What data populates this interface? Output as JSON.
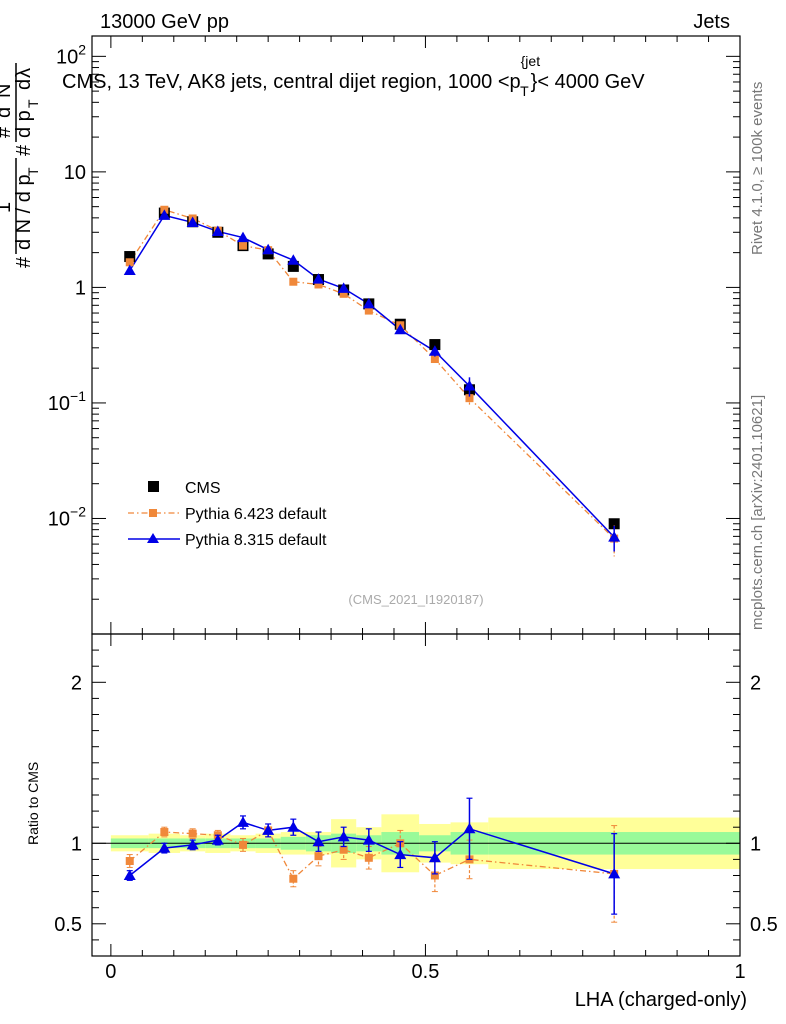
{
  "header": {
    "left": "13000 GeV pp",
    "right": "Jets",
    "title_part1": "CMS, 13 TeV, AK8 jets, central dijet region, 1000 <p",
    "title_sup": "{jet",
    "title_sub": "T",
    "title_part2": "}< 4000 GeV"
  },
  "side_labels": {
    "rivet": "Rivet 4.1.0, ≥ 100k events",
    "mcplots": "mcplots.cern.ch [arXiv:2401.10621]"
  },
  "watermark": "(CMS_2021_I1920187)",
  "chart_data": {
    "type": "line",
    "xlabel": "LHA (charged-only)",
    "ylabel_main": "1/(dN/dpT) · d²N/(dpT dλ)",
    "ylabel_ratio": "Ratio to CMS",
    "xlim": [
      -0.03,
      1.0
    ],
    "main_ylim": [
      0.001,
      150
    ],
    "main_yscale": "log",
    "ratio_ylim": [
      0.3,
      2.3
    ],
    "x_ticks": [
      {
        "v": 0,
        "label": "0"
      },
      {
        "v": 0.5,
        "label": "0.5"
      },
      {
        "v": 1,
        "label": "1"
      }
    ],
    "main_y_ticks": [
      {
        "v": 0.01,
        "base": "10",
        "exp": "−2"
      },
      {
        "v": 0.1,
        "base": "10",
        "exp": "−1"
      },
      {
        "v": 1,
        "base": "1",
        "exp": ""
      },
      {
        "v": 10,
        "base": "10",
        "exp": ""
      },
      {
        "v": 100,
        "base": "10",
        "exp": "2"
      }
    ],
    "ratio_y_ticks": [
      {
        "v": 0.5,
        "label": "0.5"
      },
      {
        "v": 1,
        "label": "1"
      },
      {
        "v": 2,
        "label": "2"
      }
    ],
    "x": [
      0.03,
      0.085,
      0.13,
      0.17,
      0.21,
      0.25,
      0.29,
      0.33,
      0.37,
      0.41,
      0.46,
      0.515,
      0.57,
      0.8
    ],
    "bin_edges": [
      0,
      0.06,
      0.11,
      0.15,
      0.19,
      0.23,
      0.27,
      0.31,
      0.35,
      0.39,
      0.43,
      0.49,
      0.54,
      0.6,
      1.0
    ],
    "series": [
      {
        "name": "CMS",
        "values": [
          1.85,
          4.4,
          3.7,
          3.0,
          2.3,
          1.95,
          1.52,
          1.17,
          0.95,
          0.72,
          0.48,
          0.32,
          0.13,
          0.009
        ],
        "errors": [
          0.06,
          0.12,
          0.1,
          0.08,
          0.06,
          0.05,
          0.04,
          0.03,
          0.03,
          0.02,
          0.015,
          0.01,
          0.006,
          0.0005
        ],
        "band_inner": [
          0.03,
          0.03,
          0.03,
          0.03,
          0.03,
          0.03,
          0.04,
          0.05,
          0.06,
          0.05,
          0.07,
          0.05,
          0.07,
          0.07
        ],
        "band_outer": [
          0.05,
          0.06,
          0.05,
          0.06,
          0.05,
          0.06,
          0.07,
          0.07,
          0.15,
          0.1,
          0.18,
          0.12,
          0.13,
          0.16
        ],
        "color": "#000000"
      },
      {
        "name": "Pythia 6.423 default",
        "values": [
          1.65,
          4.7,
          3.95,
          3.1,
          2.3,
          2.1,
          1.12,
          1.06,
          0.88,
          0.63,
          0.47,
          0.24,
          0.11,
          0.0067
        ],
        "ratio": [
          0.89,
          1.07,
          1.06,
          1.05,
          0.99,
          1.08,
          0.78,
          0.92,
          0.96,
          0.91,
          1.0,
          0.8,
          0.9,
          0.81
        ],
        "ratio_err": [
          0.04,
          0.03,
          0.03,
          0.03,
          0.04,
          0.04,
          0.05,
          0.06,
          0.06,
          0.07,
          0.08,
          0.1,
          0.12,
          0.3
        ],
        "color": "#f0883a"
      },
      {
        "name": "Pythia 8.315 default",
        "values": [
          1.4,
          4.2,
          3.65,
          3.05,
          2.7,
          2.12,
          1.72,
          1.18,
          0.98,
          0.72,
          0.43,
          0.28,
          0.14,
          0.0069
        ],
        "ratio": [
          0.8,
          0.97,
          0.99,
          1.02,
          1.13,
          1.08,
          1.1,
          1.01,
          1.04,
          1.02,
          0.93,
          0.91,
          1.09,
          0.81
        ],
        "ratio_err": [
          0.03,
          0.03,
          0.03,
          0.03,
          0.04,
          0.04,
          0.05,
          0.06,
          0.06,
          0.07,
          0.08,
          0.1,
          0.19,
          0.25
        ],
        "color": "#0000e6"
      }
    ],
    "colors": {
      "band_inner": "#99fa99",
      "band_outer": "#ffff99"
    }
  }
}
